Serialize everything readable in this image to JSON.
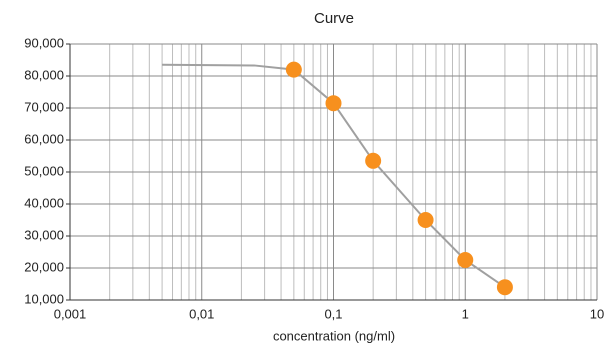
{
  "chart_data": {
    "type": "scatter",
    "title": "Curve",
    "x_label": "concentration (ng/ml)",
    "xscale": "log",
    "grid": true,
    "xlim": [
      0.001,
      10
    ],
    "xticks": [
      {
        "value": 0.001,
        "label": "0,001"
      },
      {
        "value": 0.01,
        "label": "0,01"
      },
      {
        "value": 0.1,
        "label": "0,1"
      },
      1,
      10
    ],
    "xminorticks": [
      0.002,
      0.003,
      0.004,
      0.005,
      0.006,
      0.007,
      0.008,
      0.009,
      0.02,
      0.03,
      0.04,
      0.05,
      0.06,
      0.07,
      0.08,
      0.09,
      0.2,
      0.3,
      0.4,
      0.5,
      0.6,
      0.7,
      0.8,
      0.9,
      2,
      3,
      4,
      5,
      6,
      7,
      8,
      9
    ],
    "ylim": [
      10000,
      90000
    ],
    "yticks": [
      {
        "value": 10000,
        "label": "10,000"
      },
      {
        "value": 20000,
        "label": "20,000"
      },
      {
        "value": 30000,
        "label": "30,000"
      },
      {
        "value": 40000,
        "label": "40,000"
      },
      {
        "value": 50000,
        "label": "50,000"
      },
      {
        "value": 60000,
        "label": "60,000"
      },
      {
        "value": 70000,
        "label": "70,000"
      },
      {
        "value": 80000,
        "label": "80,000"
      },
      {
        "value": 90000,
        "label": "90,000"
      }
    ],
    "series": [
      {
        "type": "line",
        "color": "#a0a0a0",
        "x": [
          0.005,
          0.025,
          0.05,
          0.1,
          0.2,
          0.5,
          1,
          2
        ],
        "values": [
          83500,
          83300,
          82000,
          71500,
          53500,
          35000,
          22500,
          14000
        ]
      },
      {
        "type": "scatter",
        "color": "#f7901e",
        "x": [
          0.05,
          0.1,
          0.2,
          0.5,
          1,
          2
        ],
        "values": [
          82000,
          71500,
          53500,
          35000,
          22500,
          14000
        ]
      }
    ]
  }
}
